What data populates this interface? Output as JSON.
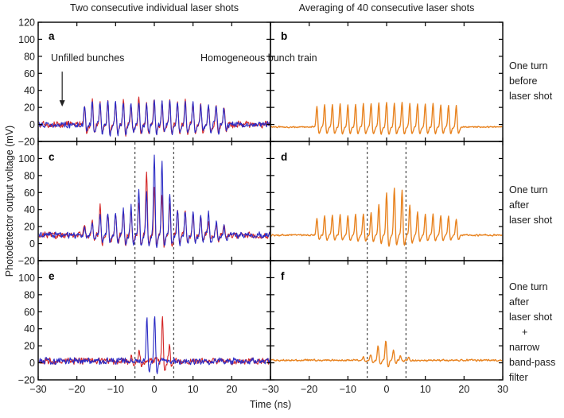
{
  "colors": {
    "red": "#d42828",
    "blue": "#2a2ac4",
    "orange": "#e8821e",
    "axis": "#000000",
    "dashed": "#3a3a3a",
    "text": "#1a1a1a"
  },
  "chart_data": {
    "type": "line",
    "titles": {
      "left": "Two consecutive individual laser shots",
      "right": "Averaging of 40 consecutive laser shots"
    },
    "xlabel": "Time (ns)",
    "ylabel": "Photodetector output voltage (mV)",
    "x_range": [
      -30,
      30
    ],
    "y_range": [
      -20,
      120
    ],
    "grid": false,
    "x_tick_values": [
      -30,
      -20,
      -10,
      0,
      10,
      20,
      30
    ],
    "x_ticks_left": [
      {
        "v": -30,
        "label": "−30"
      },
      {
        "v": -20,
        "label": "−20"
      },
      {
        "v": -10,
        "label": "−10"
      },
      {
        "v": 0,
        "label": "0"
      },
      {
        "v": 10,
        "label": "10"
      },
      {
        "v": 20,
        "label": "20"
      }
    ],
    "x_ticks_right": [
      {
        "v": -30,
        "label": "−30"
      },
      {
        "v": -20,
        "label": "−20"
      },
      {
        "v": -10,
        "label": "−10"
      },
      {
        "v": 0,
        "label": "0"
      },
      {
        "v": 10,
        "label": "10"
      },
      {
        "v": 20,
        "label": "20"
      },
      {
        "v": 30,
        "label": "30"
      }
    ],
    "y_tick_values": [
      -20,
      0,
      20,
      40,
      60,
      80,
      100,
      120
    ],
    "y_tick_rows": [
      [
        {
          "v": 120,
          "label": "120"
        },
        {
          "v": 100,
          "label": "100"
        },
        {
          "v": 80,
          "label": "80"
        },
        {
          "v": 60,
          "label": "60"
        },
        {
          "v": 40,
          "label": "40"
        },
        {
          "v": 20,
          "label": "20"
        },
        {
          "v": 0,
          "label": "0"
        },
        {
          "v": -20,
          "label": "−20"
        }
      ],
      [
        {
          "v": 100,
          "label": "100"
        },
        {
          "v": 80,
          "label": "80"
        },
        {
          "v": 60,
          "label": "60"
        },
        {
          "v": 40,
          "label": "40"
        },
        {
          "v": 20,
          "label": "20"
        },
        {
          "v": 0,
          "label": "0"
        },
        {
          "v": -20,
          "label": "−20"
        }
      ],
      [
        {
          "v": 100,
          "label": "100"
        },
        {
          "v": 80,
          "label": "80"
        },
        {
          "v": 60,
          "label": "60"
        },
        {
          "v": 40,
          "label": "40"
        },
        {
          "v": 20,
          "label": "20"
        },
        {
          "v": 0,
          "label": "0"
        },
        {
          "v": -20,
          "label": "−20"
        }
      ]
    ],
    "dashed_lines_t": [
      -5,
      5
    ],
    "dashed_rows": [
      1,
      2
    ],
    "annotations": {
      "unfilled_bunches": {
        "text": "Unfilled bunches",
        "arrow": {
          "panel": "a",
          "t": -23.8,
          "v_top": 62,
          "v_tip": 21
        }
      },
      "homogeneous": {
        "text": "Homogeneous bunch train"
      }
    },
    "side_labels": [
      [
        "One turn",
        "before",
        "laser shot"
      ],
      [
        "One turn",
        "after",
        "laser shot"
      ],
      [
        "One turn",
        "after",
        "laser shot",
        "+",
        "narrow",
        "band-pass",
        "filter"
      ]
    ],
    "panels": [
      {
        "label": "a",
        "row": 0,
        "col": 0,
        "baseline": 0,
        "noise": 4.5,
        "dip": 0.38,
        "traces": [
          {
            "color": "red",
            "seed": 11,
            "width": 1.1,
            "bunches": {
              "t0": -18,
              "dt": 2,
              "heights": [
                26,
                29,
                27,
                30,
                27,
                29,
                26,
                30,
                28,
                31,
                27,
                30,
                26,
                31,
                29,
                27,
                26,
                24,
                21
              ]
            }
          },
          {
            "color": "blue",
            "seed": 12,
            "width": 1.1,
            "bunches": {
              "t0": -18,
              "dt": 2,
              "heights": [
                24,
                28,
                26,
                28,
                28,
                27,
                27,
                29,
                28,
                30,
                28,
                28,
                27,
                30,
                27,
                26,
                25,
                23,
                19
              ]
            }
          }
        ]
      },
      {
        "label": "b",
        "row": 0,
        "col": 1,
        "baseline": -3,
        "noise": 1.0,
        "dip": 0.3,
        "traces": [
          {
            "color": "orange",
            "seed": 13,
            "width": 1.35,
            "bunches": {
              "t0": -18,
              "dt": 2,
              "heights": [
                22,
                24,
                24,
                25,
                24,
                25,
                25,
                26,
                26,
                28,
                26,
                27,
                25,
                26,
                25,
                25,
                24,
                24,
                23
              ]
            }
          }
        ]
      },
      {
        "label": "c",
        "row": 1,
        "col": 0,
        "baseline": 10,
        "noise": 4.5,
        "dip": 0.3,
        "traces": [
          {
            "color": "red",
            "seed": 14,
            "width": 1.1,
            "bunches": {
              "t0": -18,
              "dt": 2,
              "heights": [
                22,
                28,
                44,
                37,
                36,
                44,
                42,
                52,
                88,
                70,
                58,
                50,
                42,
                41,
                38,
                33,
                30,
                26,
                24
              ]
            }
          },
          {
            "color": "blue",
            "seed": 15,
            "width": 1.1,
            "bunches": {
              "t0": -18,
              "dt": 2,
              "heights": [
                20,
                26,
                37,
                39,
                38,
                40,
                45,
                65,
                62,
                105,
                99,
                61,
                42,
                40,
                38,
                33,
                38,
                26,
                22
              ]
            }
          }
        ]
      },
      {
        "label": "d",
        "row": 1,
        "col": 1,
        "baseline": 10,
        "noise": 1.2,
        "dip": 0.28,
        "traces": [
          {
            "color": "orange",
            "seed": 16,
            "width": 1.35,
            "bunches": {
              "t0": -18,
              "dt": 2,
              "heights": [
                30,
                33,
                34,
                35,
                34,
                35,
                36,
                38,
                48,
                62,
                67,
                64,
                47,
                38,
                36,
                35,
                34,
                33,
                30
              ]
            }
          }
        ]
      },
      {
        "label": "e",
        "row": 2,
        "col": 0,
        "baseline": 2,
        "noise": 4.5,
        "dip": 0.35,
        "traces": [
          {
            "color": "red",
            "seed": 17,
            "width": 1.1,
            "spikes": [
              {
                "t": -5.9,
                "h": 12
              },
              {
                "t": -3.9,
                "h": 16
              },
              {
                "t": 2.1,
                "h": 55
              },
              {
                "t": 3.9,
                "h": 22
              }
            ]
          },
          {
            "color": "blue",
            "seed": 18,
            "width": 1.1,
            "spikes": [
              {
                "t": -1.9,
                "h": 53
              },
              {
                "t": 0.1,
                "h": 58
              }
            ]
          }
        ]
      },
      {
        "label": "f",
        "row": 2,
        "col": 1,
        "baseline": 3,
        "noise": 1.3,
        "dip": 0.3,
        "traces": [
          {
            "color": "orange",
            "seed": 19,
            "width": 1.35,
            "spikes": [
              {
                "t": -6.0,
                "h": 7
              },
              {
                "t": -4.1,
                "h": 10
              },
              {
                "t": -2.2,
                "h": 21
              },
              {
                "t": -0.2,
                "h": 28
              },
              {
                "t": 1.8,
                "h": 16
              },
              {
                "t": 3.6,
                "h": 8
              },
              {
                "t": 5.7,
                "h": 6
              }
            ]
          }
        ]
      }
    ]
  }
}
